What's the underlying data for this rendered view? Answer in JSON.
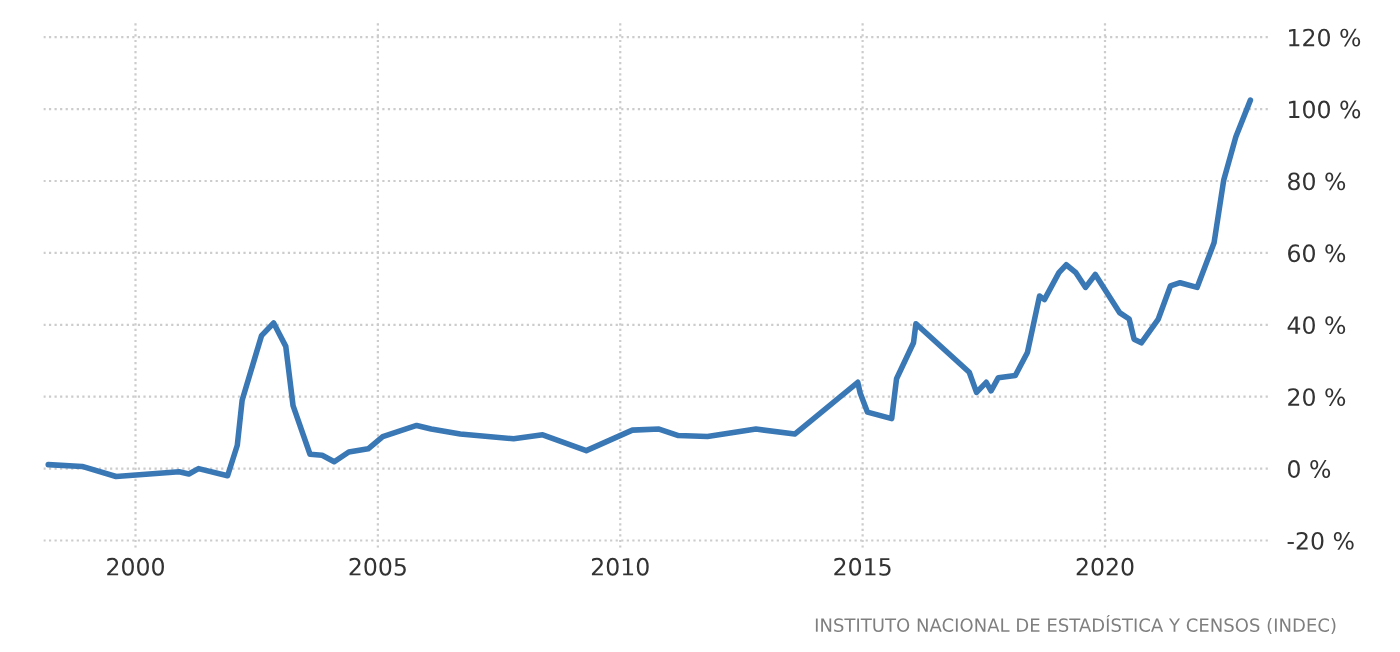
{
  "chart_data": {
    "type": "line",
    "x": [
      1998.2,
      1998.9,
      1999.6,
      2000.9,
      2001.1,
      2001.3,
      2001.9,
      2002.1,
      2002.2,
      2002.6,
      2002.85,
      2003.1,
      2003.25,
      2003.6,
      2003.85,
      2004.1,
      2004.4,
      2004.8,
      2005.1,
      2005.8,
      2006.1,
      2006.7,
      2007.8,
      2008.4,
      2009.3,
      2010.25,
      2010.8,
      2011.2,
      2011.8,
      2012.8,
      2013.6,
      2014.9,
      2014.95,
      2015.1,
      2015.6,
      2015.7,
      2016.05,
      2016.1,
      2017.2,
      2017.35,
      2017.55,
      2017.65,
      2017.8,
      2018.15,
      2018.4,
      2018.65,
      2018.75,
      2019.05,
      2019.2,
      2019.4,
      2019.6,
      2019.8,
      2020.3,
      2020.5,
      2020.6,
      2020.75,
      2021.1,
      2021.35,
      2021.55,
      2021.9,
      2022.25,
      2022.45,
      2022.7,
      2023.0
    ],
    "series": [
      {
        "color": "#3a78b5",
        "values": [
          1.1,
          0.6,
          -2.2,
          -0.9,
          -1.5,
          0,
          -2,
          6.5,
          19,
          37,
          40.5,
          34,
          17.5,
          4,
          3.7,
          1.9,
          4.6,
          5.5,
          8.9,
          12,
          11,
          9.6,
          8.3,
          9.4,
          5,
          10.7,
          11,
          9.2,
          8.9,
          11,
          9.6,
          24,
          21,
          15.7,
          13.9,
          25,
          35,
          40.3,
          26.8,
          21.2,
          24,
          21.6,
          25.3,
          25.9,
          32.3,
          48,
          47,
          54.5,
          56.7,
          54.5,
          50.4,
          54,
          43.4,
          41.6,
          36,
          35,
          41.6,
          50.8,
          51.7,
          50.4,
          62.8,
          80.3,
          92.3,
          102.5
        ]
      }
    ],
    "xlim": [
      1998.1,
      2023.4
    ],
    "xticks": [
      2000,
      2005,
      2010,
      2015,
      2020
    ],
    "ylim": [
      -22,
      124
    ],
    "yticks": [
      {
        "value": -20,
        "label": "-20 %"
      },
      {
        "value": 0,
        "label": "0 %"
      },
      {
        "value": 20,
        "label": "20 %"
      },
      {
        "value": 40,
        "label": "40 %"
      },
      {
        "value": 60,
        "label": "60 %"
      },
      {
        "value": 80,
        "label": "80 %"
      },
      {
        "value": 100,
        "label": "100 %"
      },
      {
        "value": 120,
        "label": "120 %"
      }
    ],
    "grid": true,
    "annotations": [
      "INSTITUTO NACIONAL DE ESTADÍSTICA Y CENSOS (INDEC)"
    ]
  }
}
